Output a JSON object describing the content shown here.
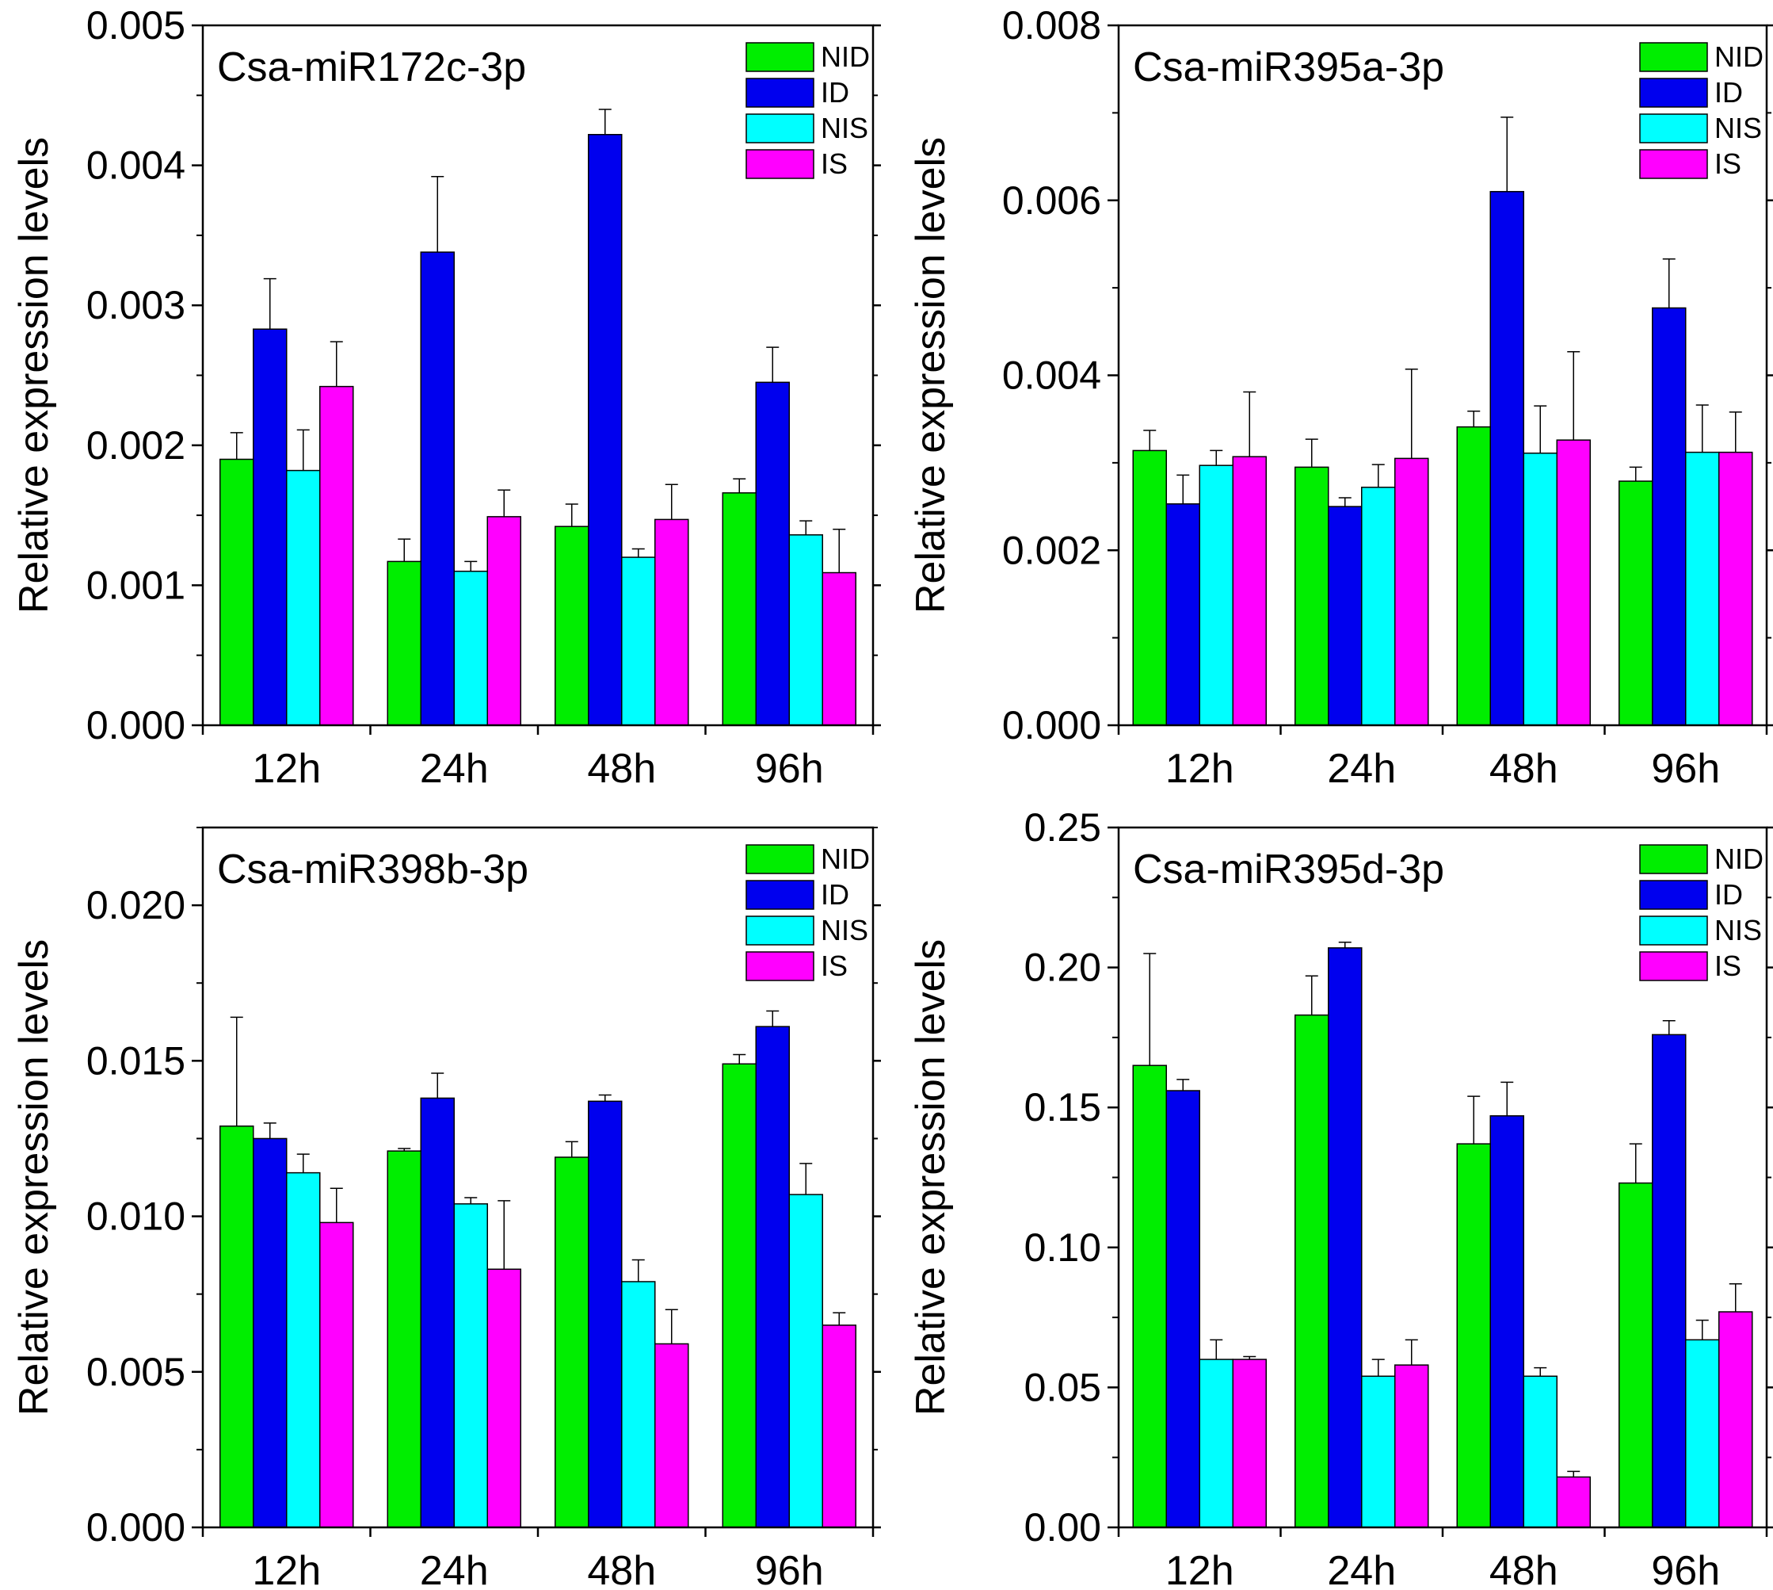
{
  "figure": {
    "series_names": [
      "NID",
      "ID",
      "NIS",
      "IS"
    ]
  },
  "chart_data": [
    {
      "type": "bar",
      "title": "Csa-miR172c-3p",
      "xlabel": "",
      "ylabel": "Relative expression levels",
      "categories": [
        "12h",
        "24h",
        "48h",
        "96h"
      ],
      "ylim": [
        0,
        0.005
      ],
      "yticks": [
        "0.000",
        "0.001",
        "0.002",
        "0.003",
        "0.004",
        "0.005"
      ],
      "legend_position": "top-right",
      "series": [
        {
          "name": "NID",
          "color": "#00ee00",
          "values": [
            0.0019,
            0.00117,
            0.00142,
            0.00166
          ],
          "errors": [
            0.00019,
            0.00016,
            0.00016,
            0.0001
          ]
        },
        {
          "name": "ID",
          "color": "#0000ee",
          "values": [
            0.00283,
            0.00338,
            0.00422,
            0.00245
          ],
          "errors": [
            0.00036,
            0.00054,
            0.00018,
            0.00025
          ]
        },
        {
          "name": "NIS",
          "color": "#00ffff",
          "values": [
            0.00182,
            0.0011,
            0.0012,
            0.00136
          ],
          "errors": [
            0.00029,
            7e-05,
            6e-05,
            0.0001
          ]
        },
        {
          "name": "IS",
          "color": "#ff00ff",
          "values": [
            0.00242,
            0.00149,
            0.00147,
            0.00109
          ],
          "errors": [
            0.00032,
            0.00019,
            0.00025,
            0.00031
          ]
        }
      ]
    },
    {
      "type": "bar",
      "title": "Csa-miR395a-3p",
      "xlabel": "",
      "ylabel": "Relative expression levels",
      "categories": [
        "12h",
        "24h",
        "48h",
        "96h"
      ],
      "ylim": [
        0,
        0.008
      ],
      "yticks": [
        "0.000",
        "0.002",
        "0.004",
        "0.006",
        "0.008"
      ],
      "legend_position": "top-right",
      "series": [
        {
          "name": "NID",
          "color": "#00ee00",
          "values": [
            0.00314,
            0.00295,
            0.00341,
            0.00279
          ],
          "errors": [
            0.00023,
            0.00032,
            0.00018,
            0.00016
          ]
        },
        {
          "name": "ID",
          "color": "#0000ee",
          "values": [
            0.00253,
            0.0025,
            0.0061,
            0.00477
          ],
          "errors": [
            0.00033,
            0.0001,
            0.00085,
            0.00056
          ]
        },
        {
          "name": "NIS",
          "color": "#00ffff",
          "values": [
            0.00297,
            0.00272,
            0.00311,
            0.00312
          ],
          "errors": [
            0.00017,
            0.00026,
            0.00054,
            0.00054
          ]
        },
        {
          "name": "IS",
          "color": "#ff00ff",
          "values": [
            0.00307,
            0.00305,
            0.00326,
            0.00312
          ],
          "errors": [
            0.00074,
            0.00102,
            0.00101,
            0.00046
          ]
        }
      ]
    },
    {
      "type": "bar",
      "title": "Csa-miR398b-3p",
      "xlabel": "",
      "ylabel": "Relative expression levels",
      "categories": [
        "12h",
        "24h",
        "48h",
        "96h"
      ],
      "ylim": [
        0,
        0.0225
      ],
      "yticks": [
        "0.000",
        "0.005",
        "0.010",
        "0.015",
        "0.020"
      ],
      "legend_position": "top-right",
      "series": [
        {
          "name": "NID",
          "color": "#00ee00",
          "values": [
            0.0129,
            0.0121,
            0.0119,
            0.0149
          ],
          "errors": [
            0.0035,
            8e-05,
            0.0005,
            0.0003
          ]
        },
        {
          "name": "ID",
          "color": "#0000ee",
          "values": [
            0.0125,
            0.0138,
            0.0137,
            0.0161
          ],
          "errors": [
            0.0005,
            0.0008,
            0.0002,
            0.0005
          ]
        },
        {
          "name": "NIS",
          "color": "#00ffff",
          "values": [
            0.0114,
            0.0104,
            0.0079,
            0.0107
          ],
          "errors": [
            0.0006,
            0.0002,
            0.0007,
            0.001
          ]
        },
        {
          "name": "IS",
          "color": "#ff00ff",
          "values": [
            0.0098,
            0.0083,
            0.0059,
            0.0065
          ],
          "errors": [
            0.0011,
            0.0022,
            0.0011,
            0.0004
          ]
        }
      ]
    },
    {
      "type": "bar",
      "title": "Csa-miR395d-3p",
      "xlabel": "",
      "ylabel": "Relative expression levels",
      "categories": [
        "12h",
        "24h",
        "48h",
        "96h"
      ],
      "ylim": [
        0,
        0.25
      ],
      "yticks": [
        "0.00",
        "0.05",
        "0.10",
        "0.15",
        "0.20",
        "0.25"
      ],
      "legend_position": "top-right",
      "series": [
        {
          "name": "NID",
          "color": "#00ee00",
          "values": [
            0.165,
            0.183,
            0.137,
            0.123
          ],
          "errors": [
            0.04,
            0.014,
            0.017,
            0.014
          ]
        },
        {
          "name": "ID",
          "color": "#0000ee",
          "values": [
            0.156,
            0.207,
            0.147,
            0.176
          ],
          "errors": [
            0.004,
            0.002,
            0.012,
            0.005
          ]
        },
        {
          "name": "NIS",
          "color": "#00ffff",
          "values": [
            0.06,
            0.054,
            0.054,
            0.067
          ],
          "errors": [
            0.007,
            0.006,
            0.003,
            0.007
          ]
        },
        {
          "name": "IS",
          "color": "#ff00ff",
          "values": [
            0.06,
            0.058,
            0.018,
            0.077
          ],
          "errors": [
            0.001,
            0.009,
            0.002,
            0.01
          ]
        }
      ]
    }
  ]
}
